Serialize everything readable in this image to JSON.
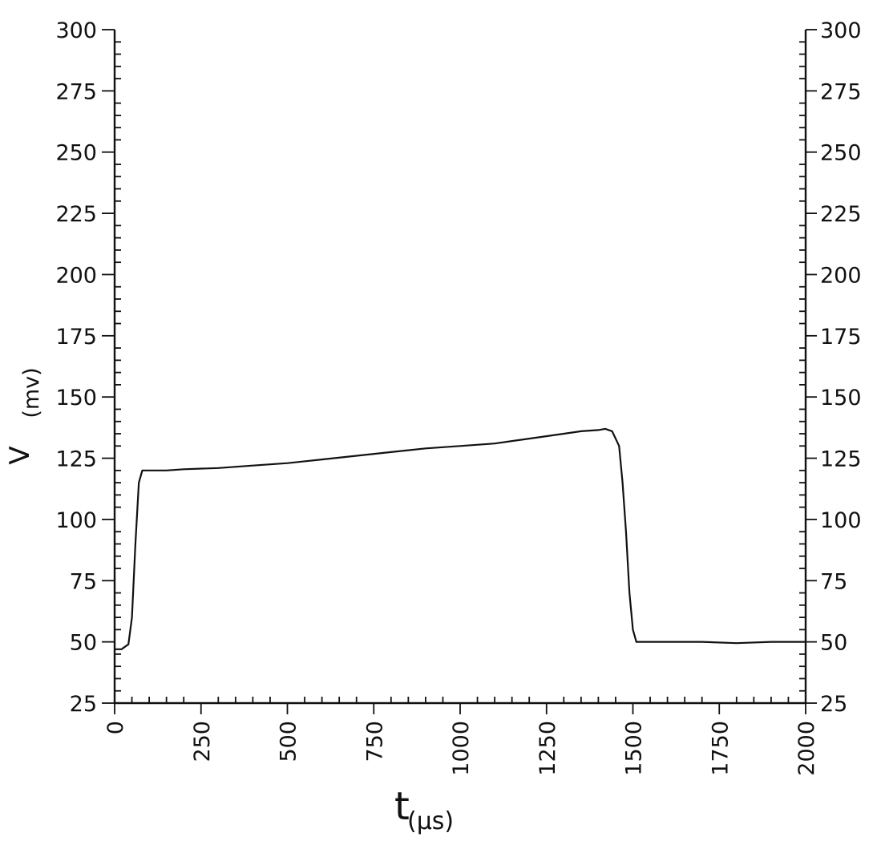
{
  "chart_data": {
    "type": "line",
    "title": "",
    "xlabel": "t",
    "xlabel_unit": "(μs)",
    "ylabel": "V",
    "ylabel_unit": "(mv)",
    "xlim": [
      0,
      2000
    ],
    "ylim": [
      25,
      300
    ],
    "x_ticks": [
      0,
      250,
      500,
      750,
      1000,
      1250,
      1500,
      1750,
      2000
    ],
    "y_ticks": [
      25,
      50,
      75,
      100,
      125,
      150,
      175,
      200,
      225,
      250,
      275,
      300
    ],
    "right_y_ticks": [
      25,
      50,
      75,
      100,
      125,
      150,
      175,
      200,
      225,
      250,
      275,
      300
    ],
    "grid": false,
    "series": [
      {
        "x": [
          0,
          20,
          30,
          40,
          50,
          60,
          70,
          80,
          100,
          150,
          200,
          300,
          400,
          500,
          600,
          700,
          800,
          900,
          1000,
          1100,
          1200,
          1300,
          1350,
          1400,
          1420,
          1440,
          1460,
          1470,
          1480,
          1490,
          1500,
          1510,
          1550,
          1600,
          1700,
          1800,
          1900,
          2000
        ],
        "y": [
          47,
          47,
          48,
          49,
          60,
          90,
          115,
          120,
          120,
          120,
          120.5,
          121,
          122,
          123,
          124.5,
          126,
          127.5,
          129,
          130,
          131,
          133,
          135,
          136,
          136.5,
          137,
          136,
          130,
          115,
          95,
          70,
          55,
          50,
          50,
          50,
          50,
          49.5,
          50,
          50
        ]
      }
    ]
  }
}
